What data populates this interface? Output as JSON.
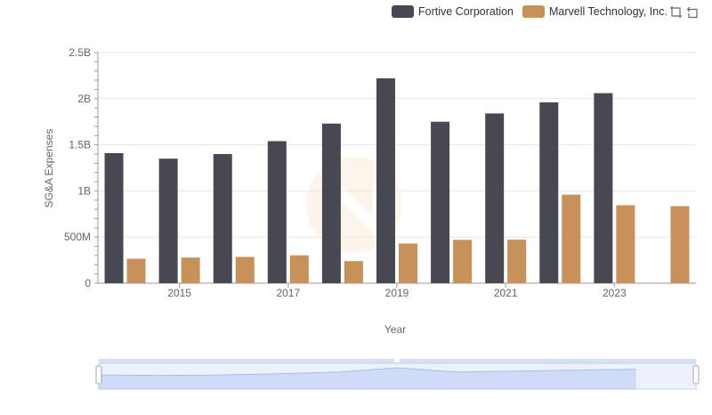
{
  "chart_data": {
    "type": "bar",
    "categories": [
      "2014",
      "2015",
      "2016",
      "2017",
      "2018",
      "2019",
      "2020",
      "2021",
      "2022",
      "2023",
      "2024"
    ],
    "series": [
      {
        "name": "Fortive Corporation",
        "color": "#484853",
        "values": [
          1410000000,
          1350000000,
          1400000000,
          1540000000,
          1730000000,
          2220000000,
          1750000000,
          1840000000,
          1960000000,
          2060000000,
          null
        ]
      },
      {
        "name": "Marvell Technology, Inc.",
        "color": "#c8915a",
        "values": [
          265000000,
          278000000,
          285000000,
          302000000,
          240000000,
          430000000,
          470000000,
          472000000,
          960000000,
          845000000,
          835000000
        ]
      }
    ],
    "xlabel": "Year",
    "ylabel": "SG&A Expenses",
    "ylim": [
      0,
      2500000000
    ],
    "yticks": [
      {
        "value": 0,
        "label": "0"
      },
      {
        "value": 500000000,
        "label": "500M"
      },
      {
        "value": 1000000000,
        "label": "1B"
      },
      {
        "value": 1500000000,
        "label": "1.5B"
      },
      {
        "value": 2000000000,
        "label": "2B"
      },
      {
        "value": 2500000000,
        "label": "2.5B"
      }
    ],
    "xticks": [
      "2015",
      "2017",
      "2019",
      "2021",
      "2023"
    ],
    "grid": true,
    "legend_position": "top-right"
  },
  "toolbox": {
    "zoom_icon": "zoom-icon",
    "restore_icon": "restore-icon"
  },
  "datazoom": {
    "range": [
      0,
      100
    ]
  }
}
